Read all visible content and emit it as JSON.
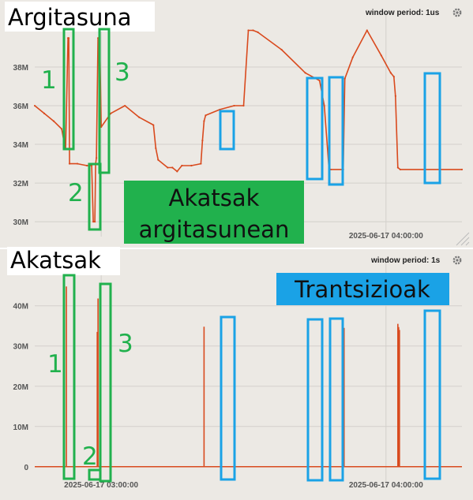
{
  "colors": {
    "series": "#d94a1e",
    "highlight_green": "#21b14d",
    "highlight_blue": "#1aa2e6",
    "panel_bg": "#ece9e4",
    "grid": "#d3d0cb"
  },
  "top_panel": {
    "title": "Argitasuna",
    "window_period": "window period: 1us",
    "settings_icon": "gear-icon",
    "resize_icon": "resize-handle-icon",
    "overlay_label_line1": "Akatsak",
    "overlay_label_line2": "argitasunean"
  },
  "bottom_panel": {
    "title": "Akatsak",
    "window_period": "window period: 1s",
    "settings_icon": "gear-icon",
    "overlay_label": "Trantsizioak"
  },
  "markers": {
    "green_labels": [
      "1",
      "2",
      "3"
    ]
  },
  "chart_data": [
    {
      "type": "line",
      "title": "Argitasuna",
      "ylim": [
        29.8,
        40
      ],
      "xlim": [
        "2025-06-17 02:46:00",
        "2025-06-17 04:16:00"
      ],
      "yticks": [
        "30M",
        "32M",
        "34M",
        "36M",
        "38M"
      ],
      "ytick_values": [
        30,
        32,
        34,
        36,
        38
      ],
      "xticks": [
        {
          "value": "2025-06-17 03:00:00",
          "label": ""
        },
        {
          "value": "2025-06-17 04:00:00",
          "label": "2025-06-17 04:00:00"
        }
      ],
      "grid": true,
      "series": [
        {
          "x": [
            "02:46:00",
            "02:48:00",
            "02:50:00",
            "02:51:40",
            "02:52:20",
            "02:52:30",
            "02:53:00",
            "02:53:10",
            "02:53:20",
            "02:55:00",
            "02:57:00",
            "02:58:00",
            "02:58:20",
            "02:58:40",
            "02:58:50",
            "02:59:00",
            "02:59:20",
            "02:59:40",
            "03:00:00",
            "03:02:00",
            "03:05:00",
            "03:08:00",
            "03:11:00",
            "03:11:30",
            "03:12:00",
            "03:14:00",
            "03:15:00",
            "03:16:00",
            "03:17:00",
            "03:19:00",
            "03:21:00",
            "03:21:20",
            "03:21:40",
            "03:22:00",
            "03:25:00",
            "03:28:00",
            "03:30:00",
            "03:31:00",
            "03:32:00",
            "03:33:00",
            "03:38:00",
            "03:43:00",
            "03:46:00",
            "03:47:00",
            "03:48:00",
            "03:48:20",
            "03:51:00",
            "03:51:20",
            "03:53:00",
            "03:56:00",
            "03:59:00",
            "04:01:00",
            "04:01:40",
            "04:02:00",
            "04:02:30",
            "04:03:00",
            "04:16:00"
          ],
          "y": [
            36.0,
            35.6,
            35.2,
            34.8,
            33.9,
            33.8,
            39.5,
            39.5,
            33.0,
            33.0,
            32.9,
            32.9,
            30.0,
            30.0,
            33.0,
            33.3,
            39.5,
            39.5,
            34.9,
            35.6,
            36.0,
            35.4,
            35.0,
            33.8,
            33.2,
            32.8,
            32.8,
            32.6,
            32.9,
            32.9,
            33.0,
            34.2,
            35.2,
            35.5,
            35.8,
            36.0,
            36.0,
            39.9,
            39.9,
            39.8,
            38.9,
            37.7,
            37.3,
            36.0,
            32.7,
            32.7,
            32.7,
            37.4,
            38.5,
            39.9,
            38.6,
            37.7,
            37.5,
            36.5,
            32.8,
            32.7,
            32.7
          ]
        }
      ]
    },
    {
      "type": "bar",
      "title": "Akatsak",
      "ylim": [
        -2,
        47
      ],
      "xlim": [
        "2025-06-17 02:46:00",
        "2025-06-17 04:16:00"
      ],
      "yticks": [
        "0",
        "10M",
        "20M",
        "30M",
        "40M"
      ],
      "ytick_values": [
        0,
        10,
        20,
        30,
        40
      ],
      "xticks": [
        {
          "value": "2025-06-17 03:00:00",
          "label": "2025-06-17 03:00:00"
        },
        {
          "value": "2025-06-17 04:00:00",
          "label": "2025-06-17 04:00:00"
        }
      ],
      "grid": true,
      "baseline": 0,
      "x": [
        "02:52:40",
        "02:59:10",
        "02:59:20",
        "03:21:40",
        "03:48:10",
        "03:51:10",
        "04:02:30",
        "04:02:40",
        "04:02:50"
      ],
      "y": [
        44.8,
        33.5,
        41.8,
        34.8,
        33.5,
        34.5,
        35.5,
        34.7,
        34.0
      ]
    }
  ]
}
